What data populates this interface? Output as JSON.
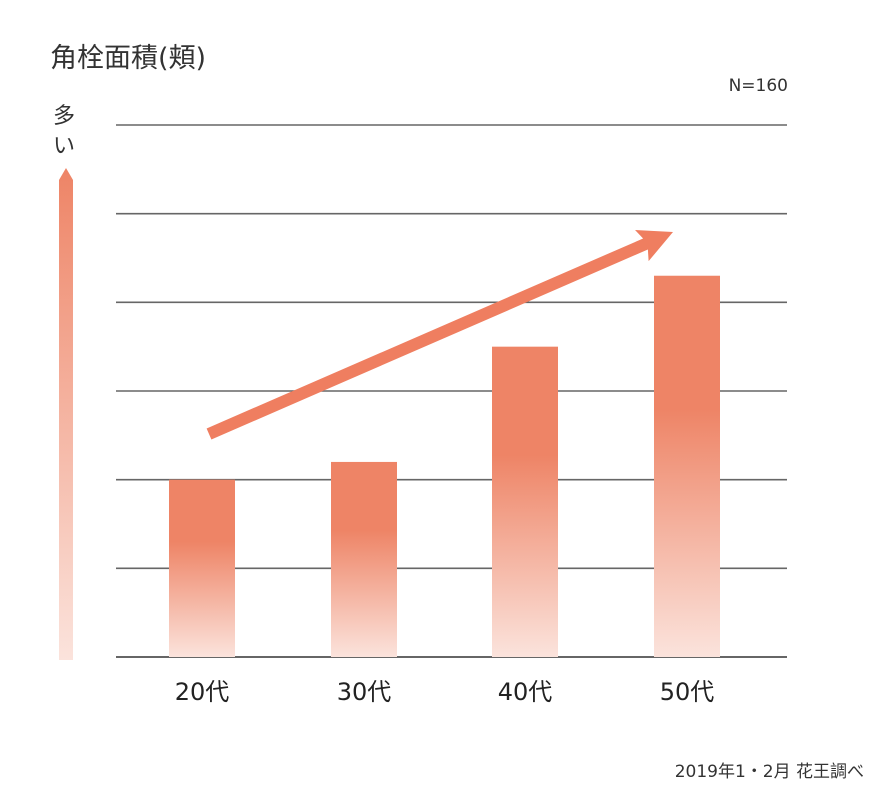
{
  "chart_data": {
    "type": "bar",
    "title": "角栓面積(頬)",
    "ylabel": "多い",
    "xlabel": "",
    "categories": [
      "20代",
      "30代",
      "40代",
      "50代"
    ],
    "values": [
      2.0,
      2.2,
      3.5,
      4.3
    ],
    "ylim": [
      0,
      6
    ],
    "y_tick_labels": false,
    "grid": true,
    "annotations": [
      "N=160",
      "2019年1・2月 花王調べ"
    ],
    "trend_arrow": "increasing",
    "colors": {
      "bar_top": "#ee8466",
      "bar_bottom": "#fbe3dc",
      "arrow": "#ef7e60",
      "grid": "#666666"
    }
  }
}
